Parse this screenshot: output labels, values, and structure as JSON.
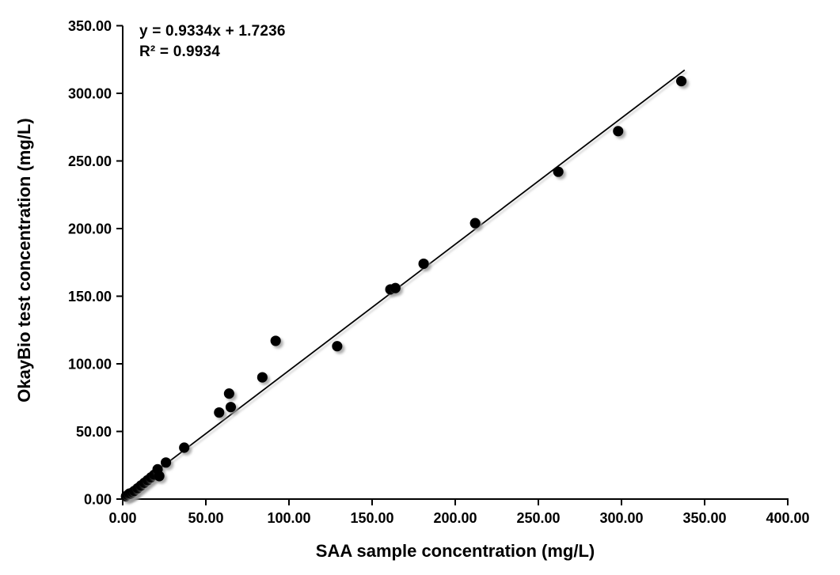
{
  "chart_data": {
    "type": "scatter",
    "title": "",
    "equation": "y = 0.9334x + 1.7236",
    "r_squared": "R² = 0.9934",
    "xlabel": "SAA sample concentration (mg/L)",
    "ylabel": "OkayBio test concentration (mg/L)",
    "xlim": [
      0,
      400
    ],
    "ylim": [
      0,
      350
    ],
    "grid": false,
    "legend": "none",
    "x_ticks": [
      {
        "value": 0,
        "label": "0.00"
      },
      {
        "value": 50,
        "label": "50.00"
      },
      {
        "value": 100,
        "label": "100.00"
      },
      {
        "value": 150,
        "label": "150.00"
      },
      {
        "value": 200,
        "label": "200.00"
      },
      {
        "value": 250,
        "label": "250.00"
      },
      {
        "value": 300,
        "label": "300.00"
      },
      {
        "value": 350,
        "label": "350.00"
      },
      {
        "value": 400,
        "label": "400.00"
      }
    ],
    "y_ticks": [
      {
        "value": 0,
        "label": "0.00"
      },
      {
        "value": 50,
        "label": "50.00"
      },
      {
        "value": 100,
        "label": "100.00"
      },
      {
        "value": 150,
        "label": "150.00"
      },
      {
        "value": 200,
        "label": "200.00"
      },
      {
        "value": 250,
        "label": "250.00"
      },
      {
        "value": 300,
        "label": "300.00"
      },
      {
        "value": 350,
        "label": "350.00"
      }
    ],
    "points": [
      [
        2,
        2
      ],
      [
        3,
        3
      ],
      [
        4,
        4
      ],
      [
        5,
        4
      ],
      [
        6,
        5
      ],
      [
        7,
        6
      ],
      [
        9,
        8
      ],
      [
        11,
        10
      ],
      [
        13,
        12
      ],
      [
        15,
        14
      ],
      [
        17,
        16
      ],
      [
        19,
        18
      ],
      [
        21,
        22
      ],
      [
        22,
        17
      ],
      [
        26,
        27
      ],
      [
        37,
        38
      ],
      [
        58,
        64
      ],
      [
        64,
        78
      ],
      [
        65,
        68
      ],
      [
        84,
        90
      ],
      [
        92,
        117
      ],
      [
        129,
        113
      ],
      [
        161,
        155
      ],
      [
        164,
        156
      ],
      [
        181,
        174
      ],
      [
        212,
        204
      ],
      [
        262,
        242
      ],
      [
        298,
        272
      ],
      [
        336,
        309
      ]
    ],
    "trendline": {
      "slope": 0.9334,
      "intercept": 1.7236,
      "x_start": 0,
      "x_end": 338
    },
    "colors": {
      "marker": "#000000",
      "trendline": "#000000",
      "axis": "#000000",
      "text": "#000000",
      "shadow": "#999999",
      "background": "#ffffff"
    },
    "marker_radius": 6.6
  }
}
